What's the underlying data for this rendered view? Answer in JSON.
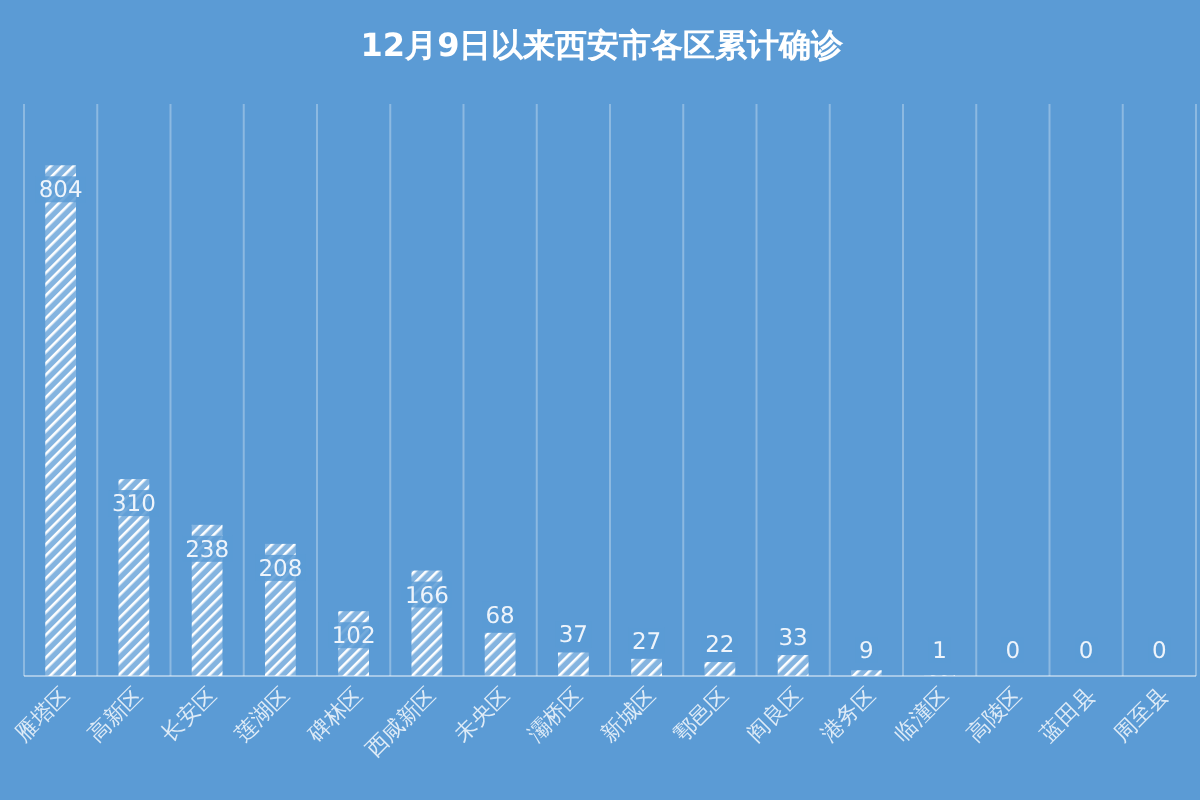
{
  "chart_data": {
    "type": "bar",
    "title": "12月9日以来西安市各区累计确诊",
    "categories": [
      "雁塔区",
      "高新区",
      "长安区",
      "莲湖区",
      "碑林区",
      "西咸新区",
      "未央区",
      "灞桥区",
      "新城区",
      "鄠邑区",
      "阎良区",
      "港务区",
      "临潼区",
      "高陵区",
      "蓝田县",
      "周至县"
    ],
    "values": [
      804,
      310,
      238,
      208,
      102,
      166,
      68,
      37,
      27,
      22,
      33,
      9,
      1,
      0,
      0,
      0
    ],
    "color": "#ffffff",
    "data_labels": true,
    "grid": "x"
  }
}
